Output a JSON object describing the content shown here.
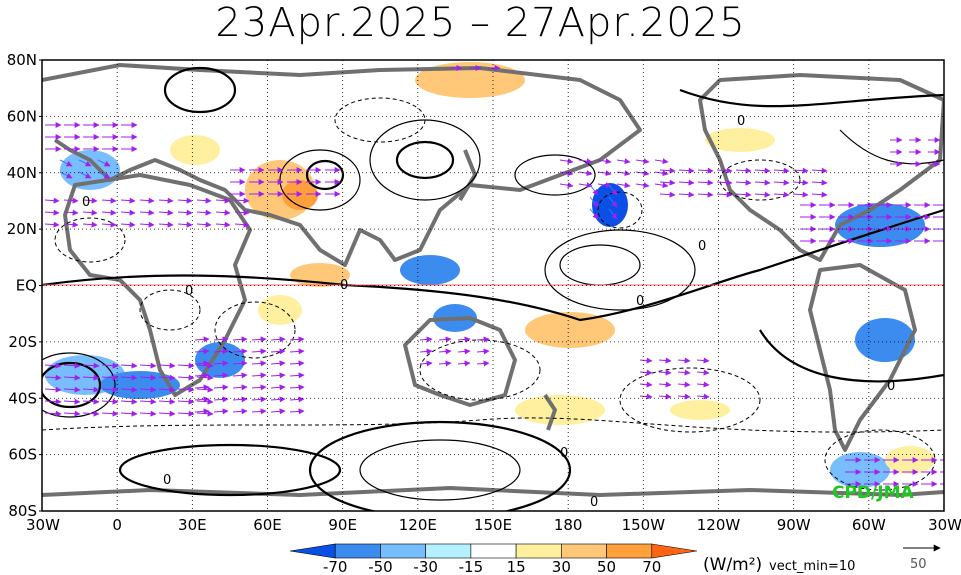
{
  "title": "23Apr.2025 – 27Apr.2025",
  "map": {
    "lat_labels": [
      "80N",
      "60N",
      "40N",
      "20N",
      "EQ",
      "20S",
      "40S",
      "60S",
      "80S"
    ],
    "lon_labels": [
      "30W",
      "0",
      "30E",
      "60E",
      "90E",
      "120E",
      "150E",
      "180",
      "150W",
      "120W",
      "90W",
      "60W",
      "30W"
    ],
    "contour_label": "0",
    "credit": "CPD/JMA"
  },
  "colorbar": {
    "tick_labels": [
      "-70",
      "-50",
      "-30",
      "-15",
      "15",
      "30",
      "50",
      "70"
    ],
    "colors": [
      "#0a50e6",
      "#3c8cf0",
      "#78beff",
      "#b4f0ff",
      "#ffffff",
      "#fff0a0",
      "#ffc878",
      "#ffa03c",
      "#ff6414"
    ],
    "unit": "(W/m²)",
    "vector_note": "vect_min=10",
    "reference_value": "50"
  },
  "colors": {
    "land_outline": "#707070",
    "vector_main": "#a020f0",
    "vector_alt": "#3c78ff",
    "equator_line": "#ff6060",
    "credit": "#1ec81e"
  }
}
